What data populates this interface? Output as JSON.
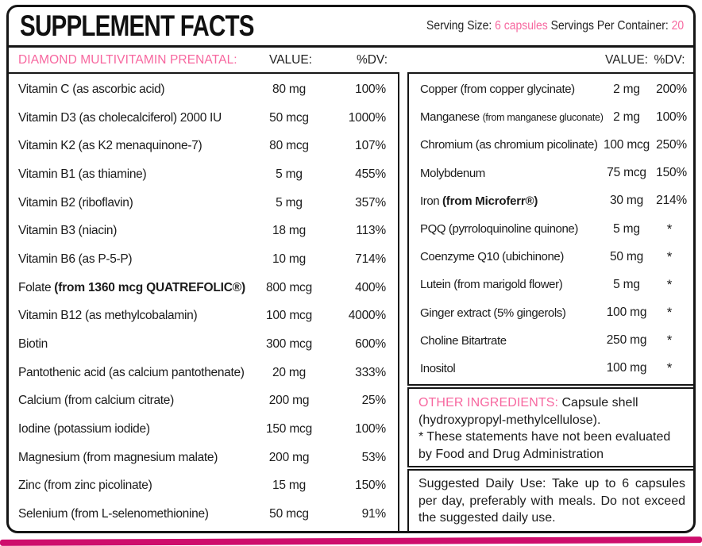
{
  "header": {
    "title": "SUPPLEMENT FACTS",
    "serving_size_label": "Serving Size: ",
    "serving_size_value": "6 capsules",
    "servings_per_container_label": " Servings Per Container: ",
    "servings_per_container_value": "20"
  },
  "columns": {
    "product_name": "DIAMOND MULTIVITAMIN PRENATAL:",
    "value_label": "VALUE:",
    "dv_label": "%DV:"
  },
  "left_table": {
    "rows": [
      {
        "parts": [
          {
            "text": "Vitamin C (as ascorbic acid)",
            "style": "normal"
          }
        ],
        "value": "80 mg",
        "dv": "100%"
      },
      {
        "parts": [
          {
            "text": "Vitamin D3 (as cholecalciferol) 2000 IU",
            "style": "normal"
          }
        ],
        "value": "50 mcg",
        "dv": "1000%"
      },
      {
        "parts": [
          {
            "text": "Vitamin K2 (as K2 menaquinone-7)",
            "style": "normal"
          }
        ],
        "value": "80 mcg",
        "dv": "107%"
      },
      {
        "parts": [
          {
            "text": "Vitamin B1 (as thiamine)",
            "style": "normal"
          }
        ],
        "value": "5 mg",
        "dv": "455%"
      },
      {
        "parts": [
          {
            "text": "Vitamin B2 (riboflavin)",
            "style": "normal"
          }
        ],
        "value": "5 mg",
        "dv": "357%"
      },
      {
        "parts": [
          {
            "text": "Vitamin B3 (niacin)",
            "style": "normal"
          }
        ],
        "value": "18 mg",
        "dv": "113%"
      },
      {
        "parts": [
          {
            "text": "Vitamin B6 (as P-5-P)",
            "style": "normal"
          }
        ],
        "value": "10 mg",
        "dv": "714%"
      },
      {
        "parts": [
          {
            "text": "Folate ",
            "style": "normal"
          },
          {
            "text": "(from 1360 mcg QUATREFOLIC®)",
            "style": "bold"
          }
        ],
        "value": "800 mcg",
        "dv": "400%"
      },
      {
        "parts": [
          {
            "text": "Vitamin B12 (as methylcobalamin)",
            "style": "normal"
          }
        ],
        "value": "100 mcg",
        "dv": "4000%"
      },
      {
        "parts": [
          {
            "text": "Biotin",
            "style": "normal"
          }
        ],
        "value": "300 mcg",
        "dv": "600%"
      },
      {
        "parts": [
          {
            "text": "Pantothenic acid (as calcium pantothenate)",
            "style": "normal"
          }
        ],
        "value": "20 mg",
        "dv": "333%"
      },
      {
        "parts": [
          {
            "text": "Calcium (from calcium citrate)",
            "style": "normal"
          }
        ],
        "value": "200 mg",
        "dv": "25%"
      },
      {
        "parts": [
          {
            "text": "Iodine (potassium iodide)",
            "style": "normal"
          }
        ],
        "value": "150 mcg",
        "dv": "100%"
      },
      {
        "parts": [
          {
            "text": "Magnesium (from magnesium malate)",
            "style": "normal"
          }
        ],
        "value": "200 mg",
        "dv": "53%"
      },
      {
        "parts": [
          {
            "text": "Zinc (from zinc picolinate)",
            "style": "normal"
          }
        ],
        "value": "15 mg",
        "dv": "150%"
      },
      {
        "parts": [
          {
            "text": "Selenium (from L-selenomethionine)",
            "style": "normal"
          }
        ],
        "value": "50 mcg",
        "dv": "91%"
      }
    ]
  },
  "right_table": {
    "rows": [
      {
        "parts": [
          {
            "text": "Copper (from copper glycinate)",
            "style": "normal"
          }
        ],
        "value": "2 mg",
        "dv": "200%"
      },
      {
        "parts": [
          {
            "text": "Manganese ",
            "style": "normal"
          },
          {
            "text": "(from manganese gluconate)",
            "style": "small"
          }
        ],
        "value": "2 mg",
        "dv": "100%"
      },
      {
        "parts": [
          {
            "text": "Chromium (as chromium picolinate)",
            "style": "normal"
          }
        ],
        "value": "100 mcg",
        "dv": "250%"
      },
      {
        "parts": [
          {
            "text": "Molybdenum",
            "style": "normal"
          }
        ],
        "value": "75 mcg",
        "dv": "150%"
      },
      {
        "parts": [
          {
            "text": "Iron ",
            "style": "normal"
          },
          {
            "text": "(from Microferr®)",
            "style": "bold"
          }
        ],
        "value": "30 mg",
        "dv": "214%"
      },
      {
        "parts": [
          {
            "text": "PQQ (pyrroloquinoline quinone)",
            "style": "normal"
          }
        ],
        "value": "5 mg",
        "dv": "*"
      },
      {
        "parts": [
          {
            "text": "Coenzyme Q10 (ubichinone)",
            "style": "normal"
          }
        ],
        "value": "50 mg",
        "dv": "*"
      },
      {
        "parts": [
          {
            "text": "Lutein (from marigold flower)",
            "style": "normal"
          }
        ],
        "value": "5 mg",
        "dv": "*"
      },
      {
        "parts": [
          {
            "text": "Ginger extract (5% gingerols)",
            "style": "normal"
          }
        ],
        "value": "100 mg",
        "dv": "*"
      },
      {
        "parts": [
          {
            "text": "Choline Bitartrate",
            "style": "normal"
          }
        ],
        "value": "250 mg",
        "dv": "*"
      },
      {
        "parts": [
          {
            "text": "Inositol",
            "style": "normal"
          }
        ],
        "value": "100 mg",
        "dv": "*"
      }
    ]
  },
  "other_ingredients": {
    "label": "OTHER INGREDIENTS:",
    "text": " Capsule shell (hydroxypropyl-methylcellulose).",
    "disclaimer": "* These statements have not been evaluated by Food and Drug Administration"
  },
  "suggested_use": {
    "text": "Suggested Daily Use: Take up to 6 capsules per day, preferably with meals. Do not exceed the suggested daily use."
  },
  "colors": {
    "pink_text": "#f7679f",
    "brand_bar": "#ce0e6c",
    "border": "#151515"
  }
}
